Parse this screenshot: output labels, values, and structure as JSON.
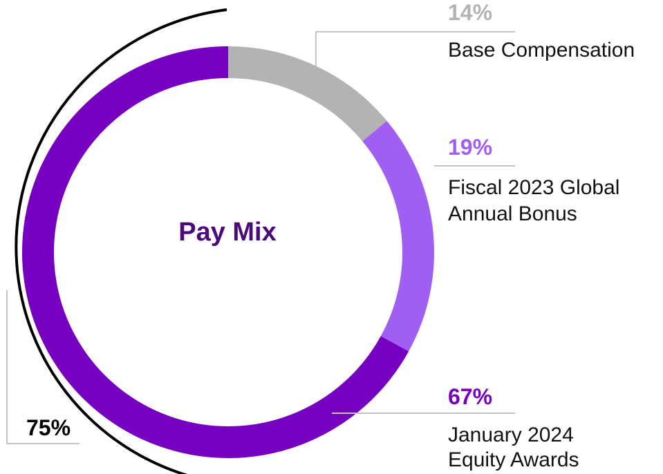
{
  "chart_data": {
    "type": "pie",
    "variant": "donut",
    "title": "Pay Mix",
    "start_angle_deg": 0,
    "direction": "clockwise",
    "slices": [
      {
        "label_line1": "Base Compensation",
        "label_line2": "",
        "value": 14,
        "value_label": "14%",
        "color": "#b3b3b3",
        "label_color": "#b3b3b3"
      },
      {
        "label_line1": "Fiscal 2023 Global",
        "label_line2": "Annual Bonus",
        "value": 19,
        "value_label": "19%",
        "color": "#a05ef3",
        "label_color": "#a05ef3"
      },
      {
        "label_line1": "January 2024",
        "label_line2": "Equity Awards",
        "value": 67,
        "value_label": "67%",
        "color": "#7500c0",
        "label_color": "#7500c0"
      }
    ],
    "annotation": {
      "text": "75%",
      "spans_from": "bonus-bracket",
      "color": "#000000"
    }
  }
}
